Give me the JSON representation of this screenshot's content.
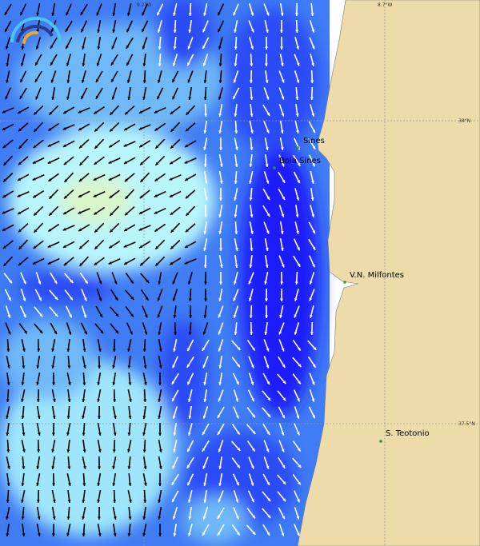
{
  "map": {
    "grid_labels": {
      "lon_left": "9.2°W",
      "lon_right": "8.7°W",
      "lat_top": "38°N",
      "lat_bottom": "37.5°N"
    },
    "places": [
      {
        "name": "Sines"
      },
      {
        "name": "Boia Sines"
      },
      {
        "name": "V.N. Milfontes"
      },
      {
        "name": "S. Teotonio"
      }
    ],
    "colors": {
      "land": "#eddcaa",
      "ocean_dark": "#1a1aff",
      "ocean_mid": "#3f7cf5",
      "ocean_light": "#6fb9f8",
      "ocean_pale": "#b8f5fb",
      "calm": "#d9f7c8",
      "arrow_dark": "#000000",
      "arrow_light": "#ffffff",
      "place_marker": "#2a9a2a"
    },
    "logo": "wave-logo-icon"
  }
}
